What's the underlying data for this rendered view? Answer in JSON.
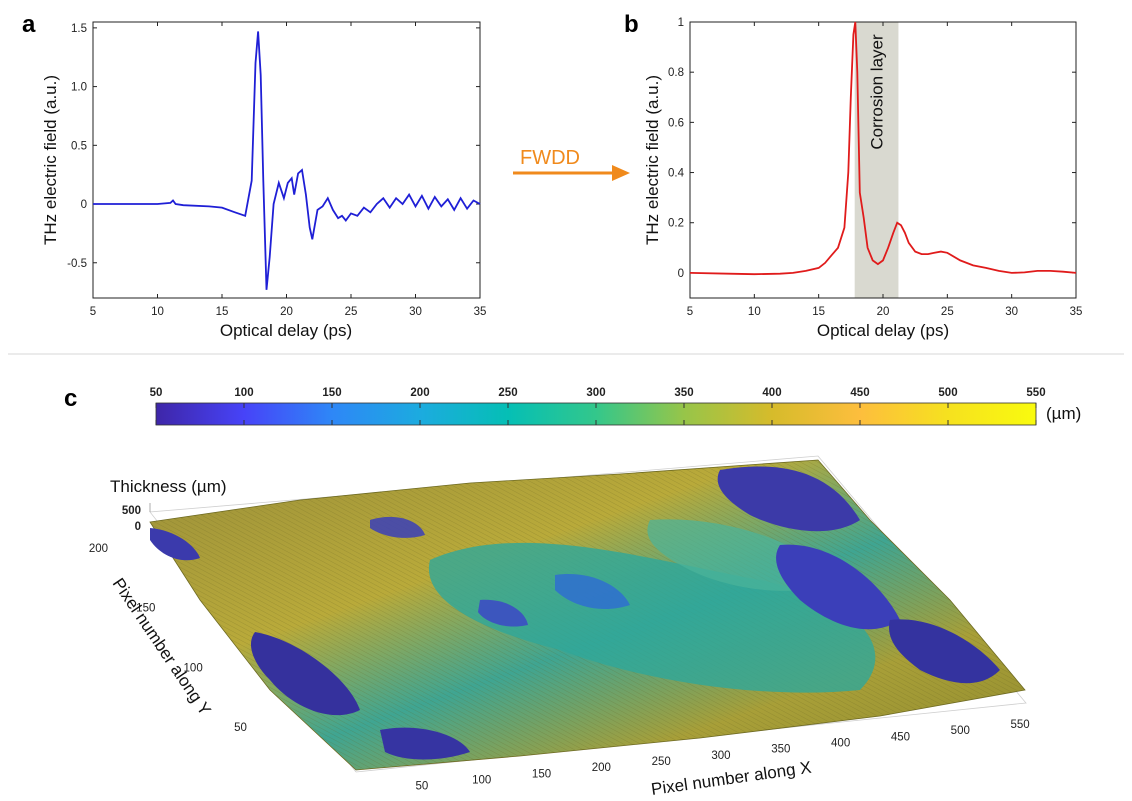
{
  "panels": {
    "a": "a",
    "b": "b",
    "c": "c"
  },
  "arrow": {
    "label": "FWDD",
    "color": "#f08a1c"
  },
  "chart_data": [
    {
      "type": "line",
      "panel": "a",
      "xlabel": "Optical delay (ps)",
      "ylabel": "THz electric field (a.u.)",
      "xlim": [
        5,
        35
      ],
      "ylim": [
        -0.8,
        1.55
      ],
      "xticks": [
        5,
        10,
        15,
        20,
        25,
        30,
        35
      ],
      "yticks": [
        -0.5,
        0,
        0.5,
        1,
        1.5
      ],
      "ytick_labels": [
        "-0.5",
        "0",
        "0.5",
        "1.0",
        "1.5"
      ],
      "grid": false,
      "series": [
        {
          "color": "#1f1fd6",
          "x": [
            5,
            10,
            11,
            11.2,
            11.4,
            12,
            14,
            15,
            16,
            16.8,
            17.3,
            17.6,
            17.8,
            18.0,
            18.2,
            18.45,
            18.7,
            19.0,
            19.4,
            19.8,
            20.1,
            20.4,
            20.6,
            20.9,
            21.2,
            21.5,
            21.8,
            22.0,
            22.4,
            22.8,
            23.2,
            23.6,
            24.0,
            24.3,
            24.6,
            25.0,
            25.5,
            26.0,
            26.5,
            27.0,
            27.5,
            28.0,
            28.5,
            29.0,
            29.5,
            30.0,
            30.5,
            31.0,
            31.5,
            32.0,
            32.5,
            33.0,
            33.5,
            34.0,
            34.5,
            35.0
          ],
          "values": [
            0.0,
            0.0,
            0.01,
            0.03,
            0.0,
            -0.01,
            -0.02,
            -0.03,
            -0.07,
            -0.1,
            0.2,
            1.2,
            1.47,
            1.1,
            0.2,
            -0.73,
            -0.45,
            0.0,
            0.18,
            0.05,
            0.18,
            0.22,
            0.08,
            0.26,
            0.29,
            0.08,
            -0.2,
            -0.3,
            -0.05,
            -0.02,
            0.05,
            -0.05,
            -0.12,
            -0.1,
            -0.14,
            -0.08,
            -0.1,
            -0.03,
            -0.07,
            0.0,
            0.05,
            -0.03,
            0.05,
            0.0,
            0.08,
            -0.02,
            0.07,
            -0.04,
            0.06,
            -0.02,
            0.04,
            -0.05,
            0.05,
            -0.04,
            0.03,
            0.0
          ]
        }
      ]
    },
    {
      "type": "line",
      "panel": "b",
      "xlabel": "Optical delay (ps)",
      "ylabel": "THz electric field (a.u.)",
      "xlim": [
        5,
        35
      ],
      "ylim": [
        -0.1,
        1.0
      ],
      "xticks": [
        5,
        10,
        15,
        20,
        25,
        30,
        35
      ],
      "yticks": [
        0,
        0.2,
        0.4,
        0.6,
        0.8,
        1
      ],
      "grid": false,
      "annotation": {
        "text": "Corrosion layer",
        "x_range": [
          17.8,
          21.2
        ],
        "color": "#d9d9d0"
      },
      "series": [
        {
          "color": "#e01b1b",
          "x": [
            5,
            8,
            10,
            12,
            13,
            14,
            15,
            15.5,
            16,
            16.5,
            17,
            17.3,
            17.5,
            17.7,
            17.85,
            18.0,
            18.2,
            18.5,
            18.8,
            19.2,
            19.6,
            20.0,
            20.4,
            20.8,
            21.1,
            21.4,
            21.7,
            22.0,
            22.5,
            23.0,
            23.5,
            24.0,
            24.5,
            25.0,
            26.0,
            27.0,
            28.0,
            29.0,
            30.0,
            31.0,
            32.0,
            33.0,
            34.0,
            35.0
          ],
          "values": [
            0.0,
            -0.003,
            -0.005,
            -0.003,
            0.0,
            0.008,
            0.02,
            0.04,
            0.07,
            0.1,
            0.18,
            0.4,
            0.7,
            0.95,
            1.0,
            0.8,
            0.32,
            0.22,
            0.1,
            0.05,
            0.035,
            0.05,
            0.1,
            0.16,
            0.2,
            0.19,
            0.16,
            0.12,
            0.085,
            0.075,
            0.075,
            0.08,
            0.085,
            0.08,
            0.05,
            0.03,
            0.02,
            0.008,
            0.0,
            0.002,
            0.008,
            0.008,
            0.005,
            0.0
          ]
        }
      ]
    },
    {
      "type": "surface",
      "panel": "c",
      "zlabel": "Thickness (µm)",
      "ylabel": "Pixel number along Y",
      "xlabel": "Pixel number along X",
      "zticks": [
        "500",
        "0"
      ],
      "yticks": [
        "50",
        "100",
        "150",
        "200"
      ],
      "xticks": [
        "50",
        "100",
        "150",
        "200",
        "250",
        "300",
        "350",
        "400",
        "450",
        "500",
        "550"
      ],
      "colorbar": {
        "range": [
          50,
          550
        ],
        "ticks": [
          "50",
          "100",
          "150",
          "200",
          "250",
          "300",
          "350",
          "400",
          "450",
          "500",
          "550"
        ],
        "unit": "(µm)",
        "colormap": [
          "#3e26a8",
          "#4743f8",
          "#2e87f7",
          "#1cabdf",
          "#05bfb5",
          "#33c78b",
          "#97c549",
          "#d6bb2b",
          "#fdbe3d",
          "#f6e11f",
          "#f9fb0e"
        ]
      }
    }
  ]
}
